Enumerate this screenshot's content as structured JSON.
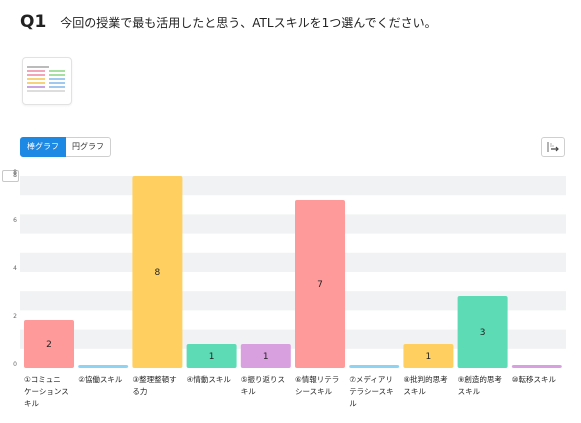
{
  "question": {
    "number": "Q1",
    "text": "今回の授業で最も活用したと思う、ATLスキルを1つ選んでください。"
  },
  "view_toggle": {
    "bar_label": "棒グラフ",
    "pie_label": "円グラフ",
    "selected": "bar"
  },
  "toolbar": {
    "export_icon": "export-arrow-icon"
  },
  "y_max_value": "8",
  "chart_data": {
    "type": "bar",
    "categories": [
      "①コミュニケーションスキル",
      "②協働スキル",
      "③整理整頓する力",
      "④情動スキル",
      "⑤振り返りスキル",
      "⑥情報リテラシースキル",
      "⑦メディアリテラシースキル",
      "⑧批判的思考スキル",
      "⑨創造的思考スキル",
      "⑩転移スキル"
    ],
    "category_lines": [
      [
        "①コミュニ",
        "ケーションス",
        "キル"
      ],
      [
        "②協働スキル"
      ],
      [
        "③整理整頓す",
        "る力"
      ],
      [
        "④情動スキル"
      ],
      [
        "⑤振り返りス",
        "キル"
      ],
      [
        "⑥情報リテラ",
        "シースキル"
      ],
      [
        "⑦メディアリ",
        "テラシースキ",
        "ル"
      ],
      [
        "⑧批判的思考",
        "スキル"
      ],
      [
        "⑨創造的思考",
        "スキル"
      ],
      [
        "⑩転移スキル"
      ]
    ],
    "values": [
      2,
      0,
      8,
      1,
      1,
      7,
      0,
      1,
      3,
      0
    ],
    "colors": [
      "#ff9a9a",
      "#8fd3f4",
      "#ffd060",
      "#5ddbb5",
      "#d9a0e0",
      "#ff9a9a",
      "#8fd3f4",
      "#ffd060",
      "#5ddbb5",
      "#d9a0e0"
    ],
    "y_ticks": [
      "0",
      "2",
      "4",
      "6",
      "8"
    ],
    "ylim": [
      0,
      8
    ],
    "grid": true
  }
}
